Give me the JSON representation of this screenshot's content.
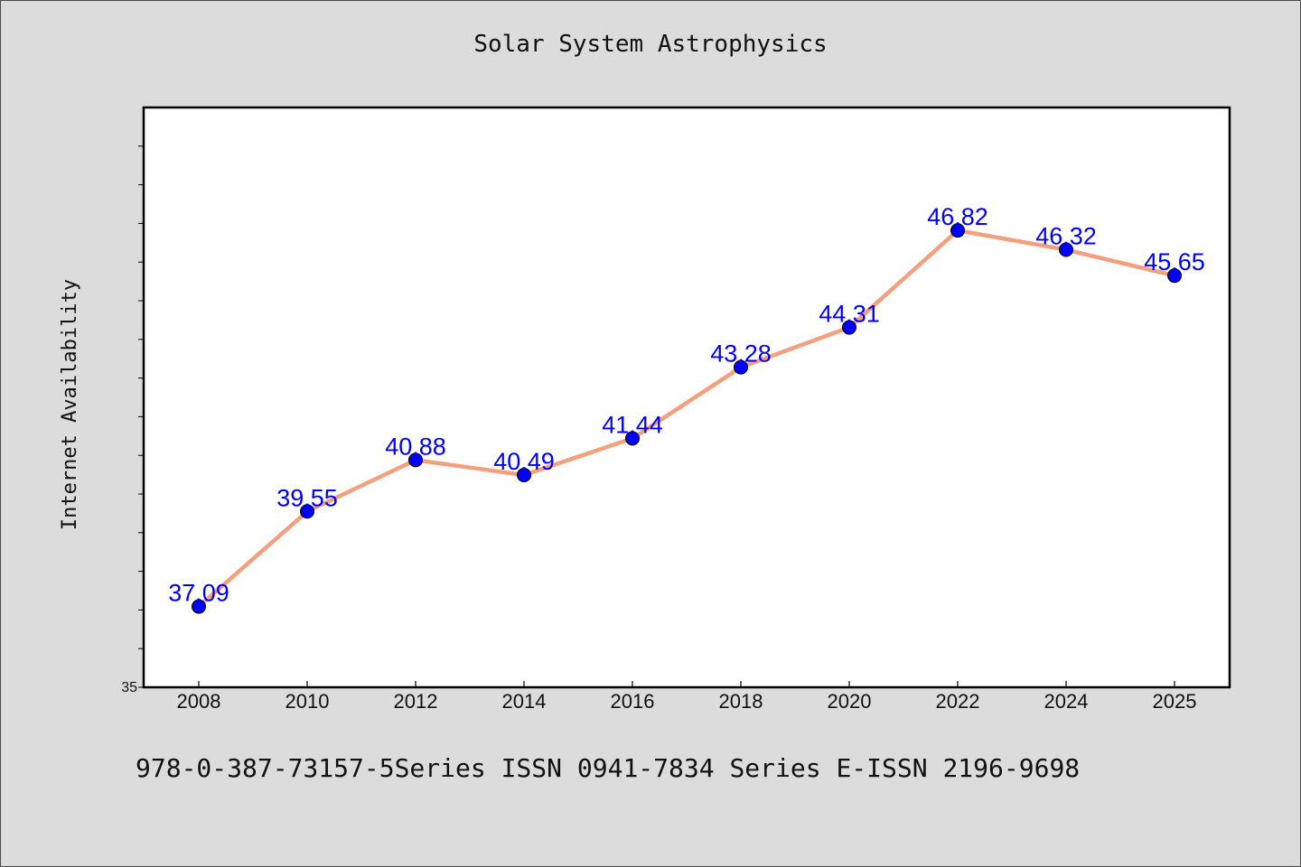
{
  "chart_data": {
    "type": "line",
    "title": "Solar System Astrophysics",
    "xlabel": "",
    "ylabel": "Internet Availability",
    "categories": [
      "2008",
      "2010",
      "2012",
      "2014",
      "2016",
      "2018",
      "2020",
      "2022",
      "2024",
      "2025"
    ],
    "series": [
      {
        "values": [
          37.09,
          39.55,
          40.88,
          40.49,
          41.44,
          43.28,
          44.31,
          46.82,
          46.32,
          45.65
        ],
        "labels": [
          "37.09",
          "39.55",
          "40.88",
          "40.49",
          "41.44",
          "43.28",
          "44.31",
          "46.82",
          "46.32",
          "45.65"
        ],
        "line_color": "#f4a07e",
        "marker_color": "#0000ff"
      }
    ],
    "ylim": [
      35,
      50
    ],
    "ytick_labels": [
      "35"
    ],
    "grid": false,
    "legend": "none"
  },
  "footer": {
    "text": "978-0-387-73157-5Series ISSN 0941-7834 Series E-ISSN 2196-9698"
  },
  "colors": {
    "background": "#dcdcdc",
    "plot_background": "#ffffff",
    "line": "#f4a07e",
    "marker": "#0000ff",
    "data_label": "#0000ff"
  }
}
